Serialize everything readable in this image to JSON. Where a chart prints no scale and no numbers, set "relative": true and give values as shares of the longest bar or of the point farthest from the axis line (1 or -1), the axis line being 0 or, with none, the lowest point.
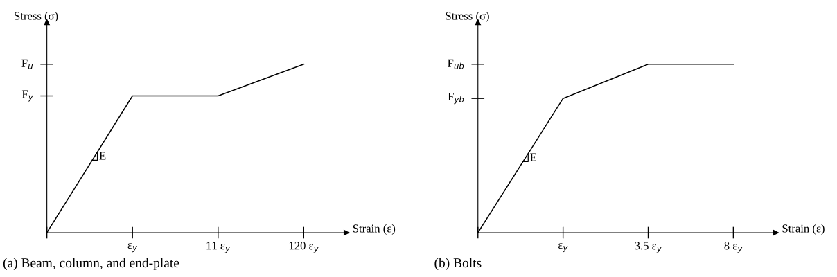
{
  "chart_data": [
    {
      "type": "line",
      "title": "(a) Beam, column, and end-plate",
      "xlabel": "Strain (ε)",
      "ylabel": "Stress (σ)",
      "relative": true,
      "categories": [
        null,
        "ε$_{y}$",
        "11 ε$_{y}$",
        "120 ε$_{y}$"
      ],
      "series": [
        {
          "color": "#000000",
          "values": [
            0,
            0.812,
            0.812,
            1
          ]
        }
      ],
      "annotations": [
        "F$_{y}$",
        "F$_{u}$",
        "E"
      ],
      "grid": false,
      "marker": "none",
      "line_style": "solid"
    },
    {
      "type": "line",
      "title": "(b) Bolts",
      "xlabel": "Strain (ε)",
      "ylabel": "Stress (σ)",
      "relative": true,
      "categories": [
        null,
        "ε$_{y}$",
        "3.5 ε$_{y}$",
        "8 ε$_{y}$"
      ],
      "series": [
        {
          "color": "#000000",
          "values": [
            0,
            0.797,
            1,
            1
          ]
        }
      ],
      "annotations": [
        "F$_{yb}$",
        "F$_{ub}$",
        "E"
      ],
      "grid": false,
      "marker": "none",
      "line_style": "solid"
    }
  ]
}
